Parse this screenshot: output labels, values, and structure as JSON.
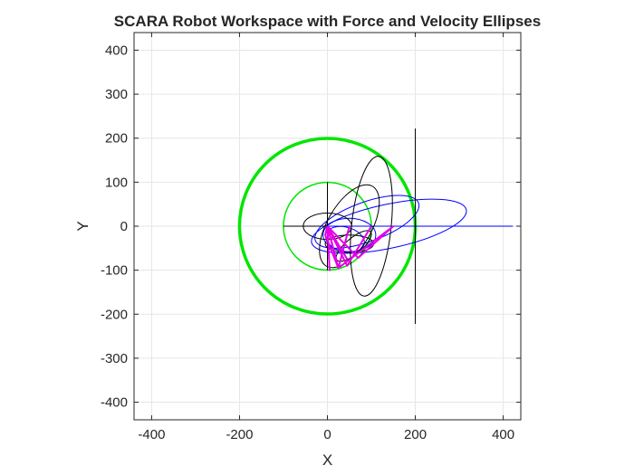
{
  "chart_data": {
    "type": "line",
    "title": "SCARA Robot Workspace with Force and Velocity Ellipses",
    "xlabel": "X",
    "ylabel": "Y",
    "xlim": [
      -440,
      440
    ],
    "ylim": [
      -440,
      440
    ],
    "x_ticks": [
      -400,
      -200,
      0,
      200,
      400
    ],
    "y_ticks": [
      -400,
      -300,
      -200,
      -100,
      0,
      100,
      200,
      300,
      400
    ],
    "x_tick_labels": [
      "-400",
      "-200",
      "0",
      "200",
      "400"
    ],
    "y_tick_labels": [
      "-400",
      "-300",
      "-200",
      "-100",
      "0",
      "100",
      "200",
      "300",
      "400"
    ],
    "grid": true,
    "aspect": "equal",
    "colors": {
      "workspace": "#00e600",
      "arm": "#e600e6",
      "force_ellipse": "#000000",
      "velocity_ellipse": "#0000ff",
      "grid": "#e6e6e6",
      "axes": "#262626"
    },
    "workspace_circles": [
      {
        "cx": 0,
        "cy": 0,
        "r": 200,
        "width": 3.5
      },
      {
        "cx": 0,
        "cy": 0,
        "r": 100,
        "width": 1.5
      }
    ],
    "arm_configurations": [
      {
        "joint": [
          5,
          -100
        ],
        "end": [
          0,
          0
        ]
      },
      {
        "joint": [
          25,
          -95
        ],
        "end": [
          50,
          0
        ]
      },
      {
        "joint": [
          45,
          -90
        ],
        "end": [
          100,
          0
        ]
      },
      {
        "joint": [
          70,
          -72
        ],
        "end": [
          150,
          0
        ]
      },
      {
        "joint": [
          25,
          -95
        ],
        "end": [
          150,
          0
        ]
      },
      {
        "joint": [
          -5,
          -20
        ],
        "end": [
          25,
          -95
        ]
      },
      {
        "joint": [
          0,
          0
        ],
        "end": [
          45,
          -75
        ]
      }
    ],
    "force_ellipses": [
      {
        "cx": 0,
        "cy": 0,
        "a": 55,
        "b": 30,
        "angle_deg": 0
      },
      {
        "cx": 50,
        "cy": 0,
        "a": 105,
        "b": 50,
        "angle_deg": 60
      },
      {
        "cx": 100,
        "cy": 0,
        "a": 160,
        "b": 45,
        "angle_deg": 84
      },
      {
        "cx": 50,
        "cy": -40,
        "a": 55,
        "b": 20,
        "angle_deg": 0
      },
      {
        "cx": 60,
        "cy": -45,
        "a": 50,
        "b": 18,
        "angle_deg": 40
      }
    ],
    "force_segments": [
      {
        "x": [
          200,
          200
        ],
        "y": [
          -222,
          222
        ]
      },
      {
        "x": [
          -100,
          0
        ],
        "y": [
          0,
          0
        ]
      },
      {
        "x": [
          0,
          0
        ],
        "y": [
          -100,
          100
        ]
      }
    ],
    "velocity_ellipses": [
      {
        "cx": 140,
        "cy": 0,
        "a": 180,
        "b": 50,
        "angle_deg": 12
      },
      {
        "cx": 90,
        "cy": 10,
        "a": 125,
        "b": 45,
        "angle_deg": 20
      },
      {
        "cx": 50,
        "cy": -20,
        "a": 60,
        "b": 38,
        "angle_deg": 0
      },
      {
        "cx": 40,
        "cy": -30,
        "a": 45,
        "b": 28,
        "angle_deg": -15
      }
    ],
    "velocity_segments": [
      {
        "x": [
          0,
          422
        ],
        "y": [
          0,
          0
        ]
      },
      {
        "x": [
          0,
          0
        ],
        "y": [
          -100,
          0
        ]
      }
    ]
  }
}
